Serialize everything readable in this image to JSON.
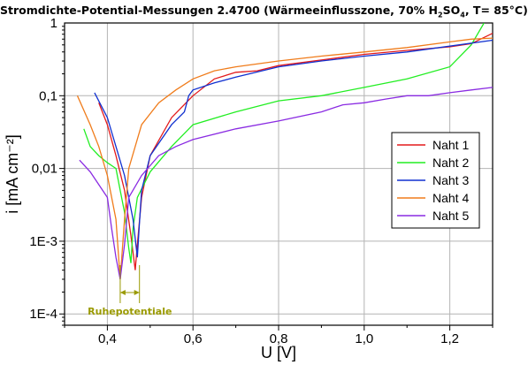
{
  "chart_data": {
    "type": "line",
    "title_parts": [
      {
        "t": "Stromdichte-Potential-Messungen 2.4700 (Wärmeeinflusszone, 70% H"
      },
      {
        "t": "2",
        "sub": true
      },
      {
        "t": "SO"
      },
      {
        "t": "4",
        "sub": true
      },
      {
        "t": ", T= 85°C)"
      }
    ],
    "xlabel": "U [V]",
    "ylabel": "i [mA cm⁻²]",
    "xlim": [
      0.3,
      1.3
    ],
    "ylim": [
      7e-05,
      1
    ],
    "yscale": "log",
    "grid": true,
    "x_ticks": [
      {
        "v": 0.4,
        "label": "0,4"
      },
      {
        "v": 0.6,
        "label": "0,6"
      },
      {
        "v": 0.8,
        "label": "0,8"
      },
      {
        "v": 1.0,
        "label": "1,0"
      },
      {
        "v": 1.2,
        "label": "1,2"
      }
    ],
    "y_ticks": [
      {
        "v": 1,
        "label": "1"
      },
      {
        "v": 0.1,
        "label": "0,1"
      },
      {
        "v": 0.01,
        "label": "0,01"
      },
      {
        "v": 0.001,
        "label": "1E-3"
      },
      {
        "v": 0.0001,
        "label": "1E-4"
      }
    ],
    "legend_position": "right",
    "annotation": {
      "text": "Ruhepotentiale",
      "x_range": [
        0.43,
        0.475
      ]
    },
    "series": [
      {
        "name": "Naht 1",
        "color": "#e31a1c",
        "points": [
          [
            0.38,
            0.08
          ],
          [
            0.4,
            0.04
          ],
          [
            0.42,
            0.015
          ],
          [
            0.44,
            0.005
          ],
          [
            0.455,
            0.0012
          ],
          [
            0.465,
            0.0004
          ],
          [
            0.47,
            0.0009
          ],
          [
            0.48,
            0.004
          ],
          [
            0.5,
            0.015
          ],
          [
            0.55,
            0.05
          ],
          [
            0.6,
            0.1
          ],
          [
            0.65,
            0.17
          ],
          [
            0.7,
            0.21
          ],
          [
            0.75,
            0.22
          ],
          [
            0.8,
            0.26
          ],
          [
            0.9,
            0.31
          ],
          [
            1.0,
            0.37
          ],
          [
            1.1,
            0.42
          ],
          [
            1.2,
            0.47
          ],
          [
            1.25,
            0.52
          ],
          [
            1.3,
            0.72
          ]
        ]
      },
      {
        "name": "Naht 2",
        "color": "#22ee22",
        "points": [
          [
            0.345,
            0.035
          ],
          [
            0.36,
            0.02
          ],
          [
            0.38,
            0.015
          ],
          [
            0.4,
            0.012
          ],
          [
            0.42,
            0.01
          ],
          [
            0.43,
            0.005
          ],
          [
            0.44,
            0.0025
          ],
          [
            0.45,
            0.0008
          ],
          [
            0.455,
            0.0005
          ],
          [
            0.46,
            0.0015
          ],
          [
            0.47,
            0.004
          ],
          [
            0.5,
            0.009
          ],
          [
            0.55,
            0.02
          ],
          [
            0.6,
            0.04
          ],
          [
            0.7,
            0.06
          ],
          [
            0.8,
            0.085
          ],
          [
            0.9,
            0.1
          ],
          [
            1.0,
            0.13
          ],
          [
            1.1,
            0.17
          ],
          [
            1.2,
            0.25
          ],
          [
            1.25,
            0.5
          ],
          [
            1.28,
            1.0
          ]
        ]
      },
      {
        "name": "Naht 3",
        "color": "#1030d0",
        "points": [
          [
            0.37,
            0.11
          ],
          [
            0.4,
            0.05
          ],
          [
            0.42,
            0.02
          ],
          [
            0.44,
            0.008
          ],
          [
            0.46,
            0.002
          ],
          [
            0.47,
            0.0006
          ],
          [
            0.475,
            0.0018
          ],
          [
            0.48,
            0.005
          ],
          [
            0.5,
            0.015
          ],
          [
            0.55,
            0.04
          ],
          [
            0.58,
            0.06
          ],
          [
            0.59,
            0.1
          ],
          [
            0.6,
            0.12
          ],
          [
            0.65,
            0.15
          ],
          [
            0.7,
            0.18
          ],
          [
            0.8,
            0.25
          ],
          [
            0.9,
            0.3
          ],
          [
            1.0,
            0.35
          ],
          [
            1.1,
            0.4
          ],
          [
            1.2,
            0.48
          ],
          [
            1.3,
            0.58
          ]
        ]
      },
      {
        "name": "Naht 4",
        "color": "#f07c1b",
        "points": [
          [
            0.33,
            0.1
          ],
          [
            0.36,
            0.04
          ],
          [
            0.38,
            0.02
          ],
          [
            0.4,
            0.008
          ],
          [
            0.42,
            0.002
          ],
          [
            0.43,
            0.0003
          ],
          [
            0.44,
            0.002
          ],
          [
            0.45,
            0.01
          ],
          [
            0.48,
            0.04
          ],
          [
            0.52,
            0.08
          ],
          [
            0.56,
            0.12
          ],
          [
            0.6,
            0.17
          ],
          [
            0.65,
            0.22
          ],
          [
            0.7,
            0.25
          ],
          [
            0.8,
            0.3
          ],
          [
            0.9,
            0.35
          ],
          [
            1.0,
            0.4
          ],
          [
            1.1,
            0.46
          ],
          [
            1.2,
            0.55
          ],
          [
            1.25,
            0.6
          ],
          [
            1.3,
            0.62
          ]
        ]
      },
      {
        "name": "Naht 5",
        "color": "#8a2be2",
        "points": [
          [
            0.335,
            0.013
          ],
          [
            0.36,
            0.009
          ],
          [
            0.38,
            0.006
          ],
          [
            0.4,
            0.004
          ],
          [
            0.41,
            0.0015
          ],
          [
            0.42,
            0.0006
          ],
          [
            0.43,
            0.0003
          ],
          [
            0.44,
            0.0009
          ],
          [
            0.45,
            0.004
          ],
          [
            0.48,
            0.008
          ],
          [
            0.52,
            0.015
          ],
          [
            0.56,
            0.02
          ],
          [
            0.6,
            0.025
          ],
          [
            0.7,
            0.035
          ],
          [
            0.8,
            0.045
          ],
          [
            0.9,
            0.06
          ],
          [
            0.95,
            0.075
          ],
          [
            1.0,
            0.08
          ],
          [
            1.05,
            0.09
          ],
          [
            1.1,
            0.1
          ],
          [
            1.15,
            0.1
          ],
          [
            1.2,
            0.11
          ],
          [
            1.25,
            0.12
          ],
          [
            1.3,
            0.13
          ]
        ]
      }
    ]
  }
}
